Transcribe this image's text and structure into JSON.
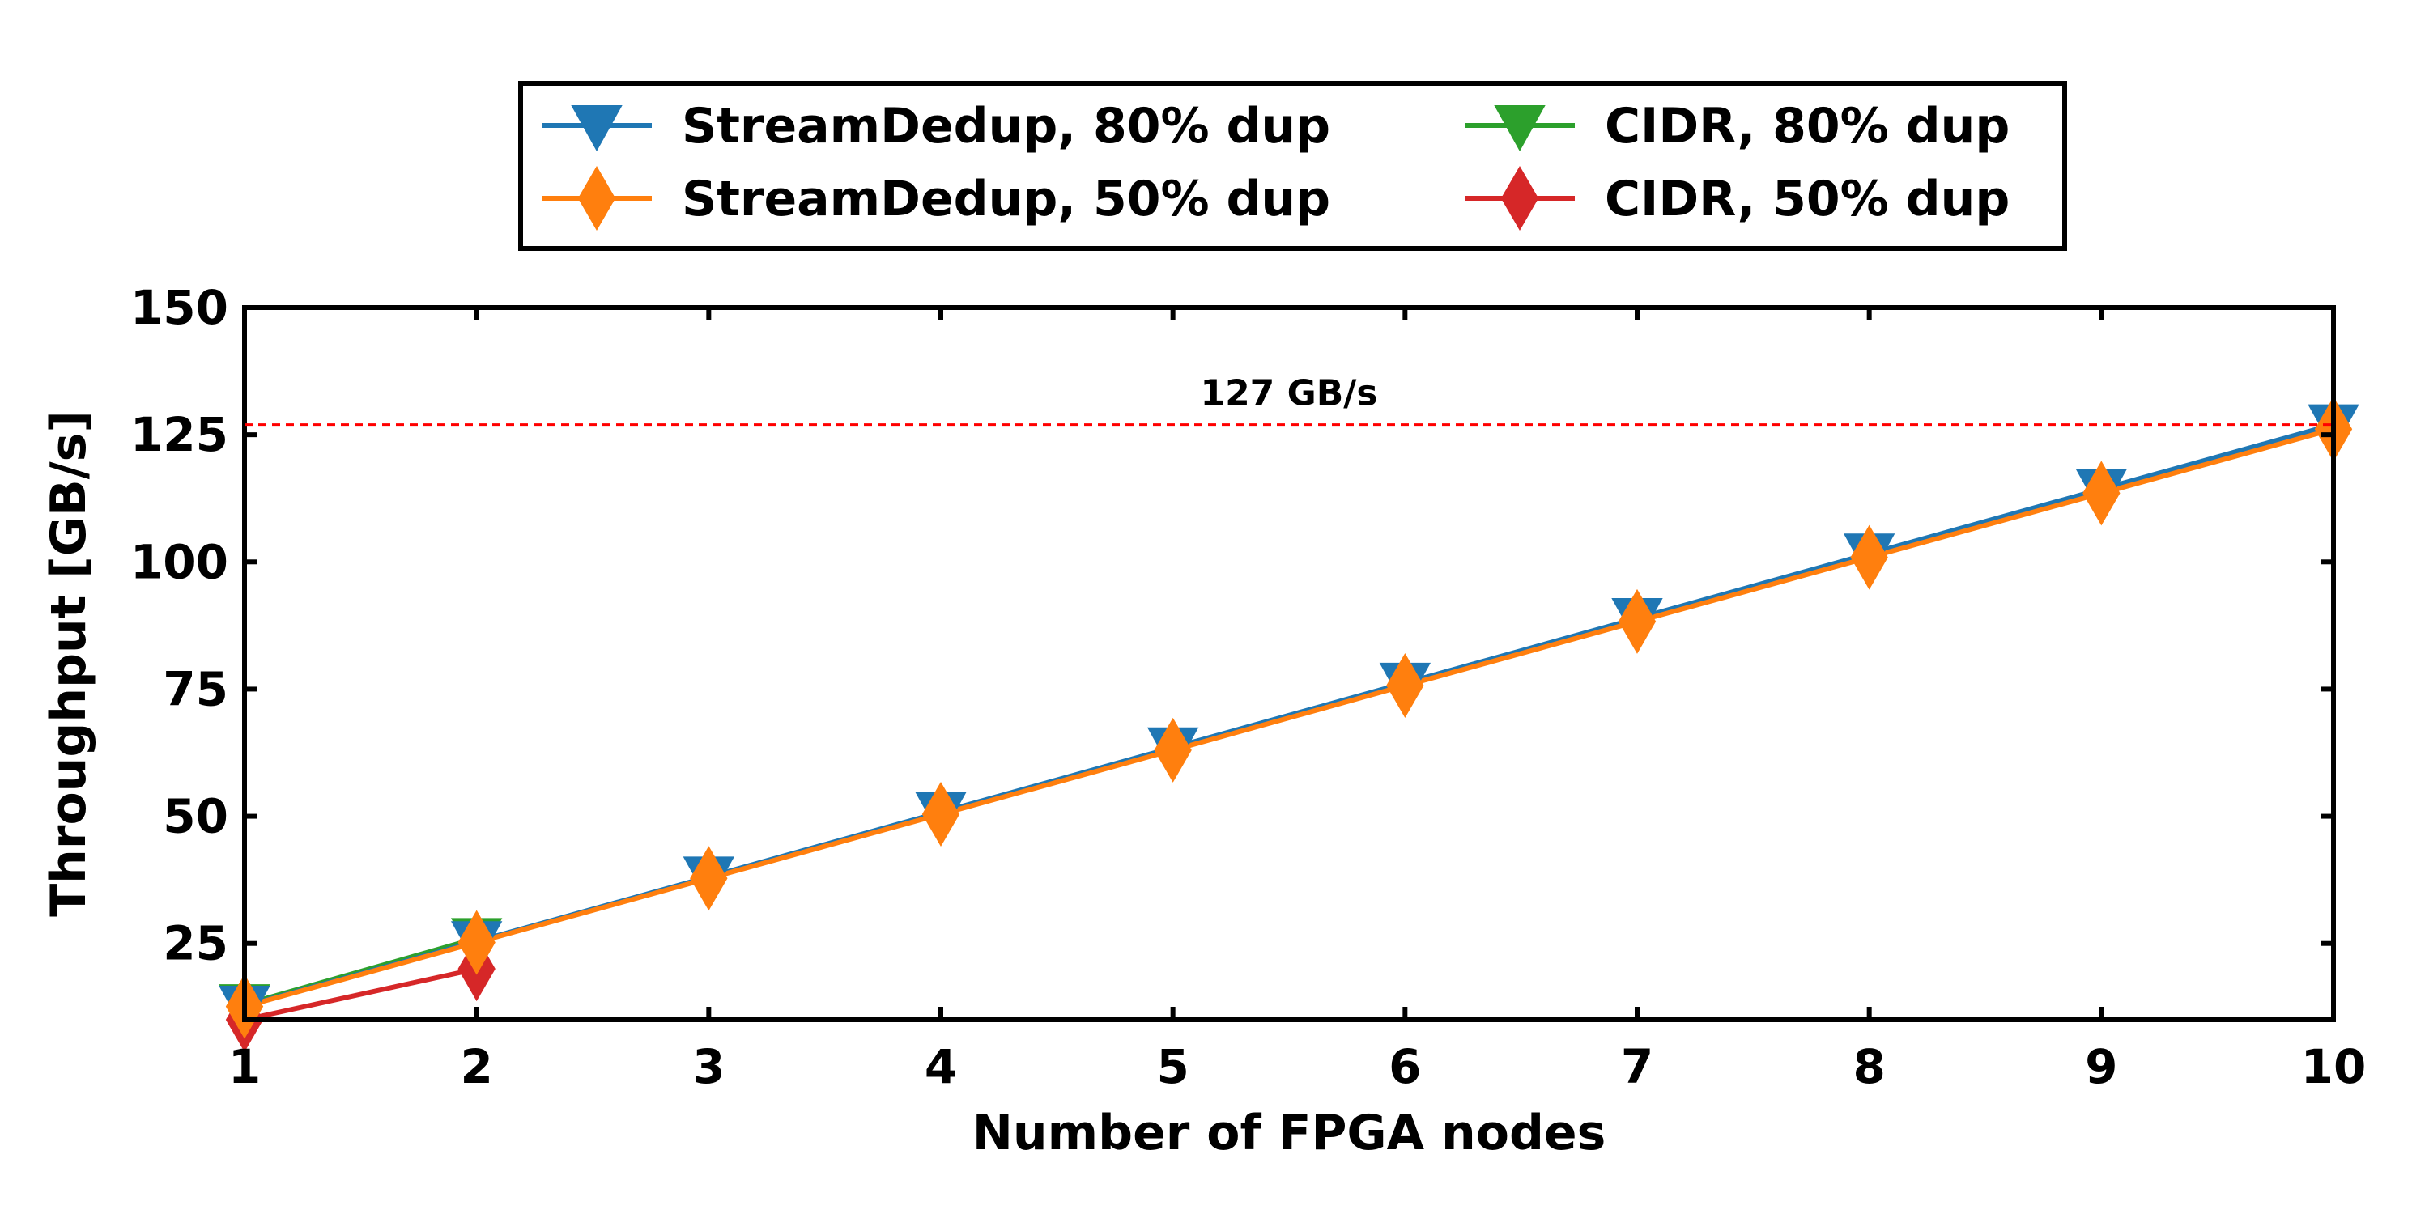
{
  "chart_data": {
    "type": "line",
    "xlabel": "Number of FPGA nodes",
    "ylabel": "Throughput [GB/s]",
    "xlim": [
      1,
      10
    ],
    "ylim": [
      10,
      150
    ],
    "x_ticks": [
      "1",
      "2",
      "3",
      "4",
      "5",
      "6",
      "7",
      "8",
      "9",
      "10"
    ],
    "y_ticks": [
      "25",
      "50",
      "75",
      "100",
      "125",
      "150"
    ],
    "grid": false,
    "legend_placement": "top-center",
    "series": [
      {
        "name": "StreamDedup, 80% dup",
        "color": "#1f77b4",
        "marker": "triangle-down",
        "x": [
          1,
          2,
          3,
          4,
          5,
          6,
          7,
          8,
          9,
          10
        ],
        "values": [
          12.7,
          25.4,
          38.1,
          50.8,
          63.5,
          76.2,
          88.9,
          101.6,
          114.3,
          127.0
        ]
      },
      {
        "name": "StreamDedup, 50% dup",
        "color": "#ff7f0e",
        "marker": "diamond",
        "x": [
          1,
          2,
          3,
          4,
          5,
          6,
          7,
          8,
          9,
          10
        ],
        "values": [
          12.6,
          25.2,
          37.8,
          50.4,
          63.0,
          75.7,
          88.3,
          100.9,
          113.5,
          126.1
        ]
      },
      {
        "name": "CIDR, 80% dup",
        "color": "#2ca02c",
        "marker": "triangle-down",
        "x": [
          1,
          2
        ],
        "values": [
          13.0,
          26.0
        ]
      },
      {
        "name": "CIDR, 50% dup",
        "color": "#d62728",
        "marker": "diamond",
        "x": [
          1,
          2
        ],
        "values": [
          10.0,
          20.0
        ]
      }
    ],
    "reference_line": {
      "y": 127,
      "label": "127 GB/s",
      "color": "#ff0000",
      "style": "dashed"
    }
  }
}
